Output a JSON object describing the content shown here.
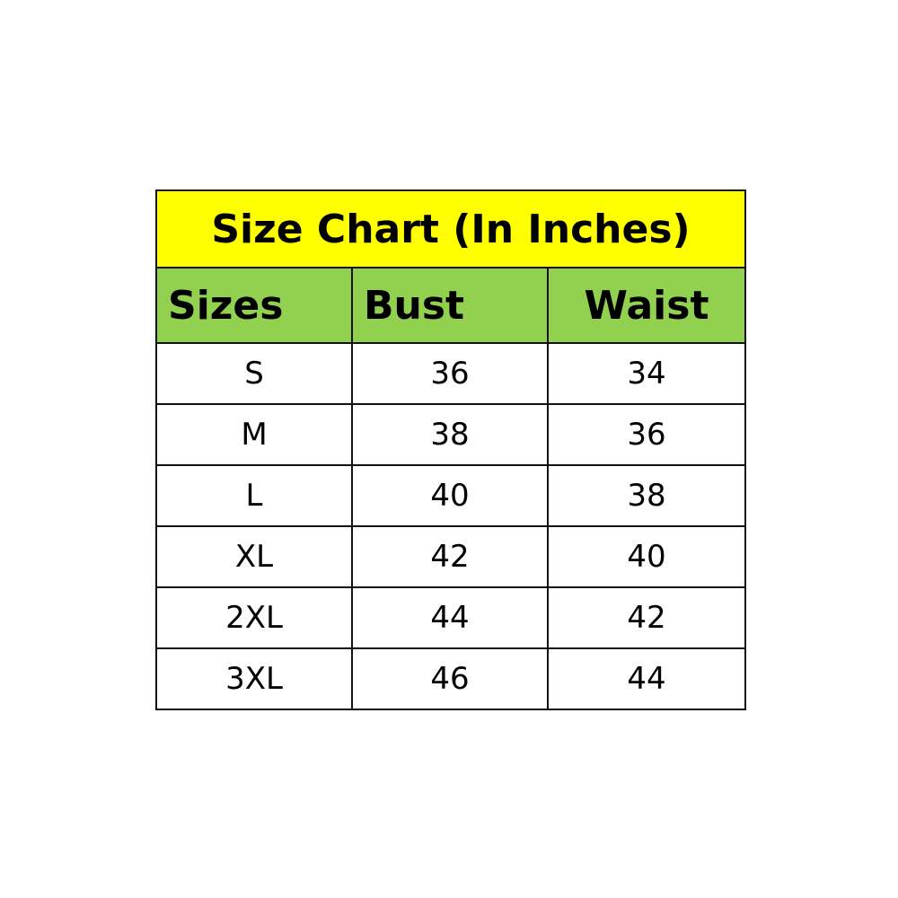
{
  "title": "Size Chart (In Inches)",
  "colors": {
    "title_bg": "#FFFF00",
    "header_bg": "#92D050"
  },
  "columns": [
    "Sizes",
    "Bust",
    "Waist"
  ],
  "rows": [
    [
      "S",
      "36",
      "34"
    ],
    [
      "M",
      "38",
      "36"
    ],
    [
      "L",
      "40",
      "38"
    ],
    [
      "XL",
      "42",
      "40"
    ],
    [
      "2XL",
      "44",
      "42"
    ],
    [
      "3XL",
      "46",
      "44"
    ]
  ]
}
